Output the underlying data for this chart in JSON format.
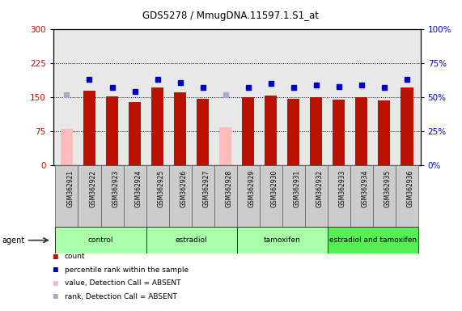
{
  "title": "GDS5278 / MmugDNA.11597.1.S1_at",
  "samples": [
    "GSM362921",
    "GSM362922",
    "GSM362923",
    "GSM362924",
    "GSM362925",
    "GSM362926",
    "GSM362927",
    "GSM362928",
    "GSM362929",
    "GSM362930",
    "GSM362931",
    "GSM362932",
    "GSM362933",
    "GSM362934",
    "GSM362935",
    "GSM362936"
  ],
  "bar_values": [
    80,
    165,
    152,
    140,
    172,
    160,
    146,
    83,
    150,
    153,
    146,
    150,
    145,
    150,
    143,
    172
  ],
  "bar_absent": [
    true,
    false,
    false,
    false,
    false,
    false,
    false,
    true,
    false,
    false,
    false,
    false,
    false,
    false,
    false,
    false
  ],
  "dot_values": [
    52,
    63,
    57,
    54,
    63,
    61,
    57,
    52,
    57,
    60,
    57,
    59,
    58,
    59,
    57,
    63
  ],
  "dot_absent": [
    true,
    false,
    false,
    false,
    false,
    false,
    false,
    true,
    false,
    false,
    false,
    false,
    false,
    false,
    false,
    false
  ],
  "ylim_left": [
    0,
    300
  ],
  "ylim_right": [
    0,
    100
  ],
  "yticks_left": [
    0,
    75,
    150,
    225,
    300
  ],
  "yticks_right": [
    0,
    25,
    50,
    75,
    100
  ],
  "group_labels": [
    "control",
    "estradiol",
    "tamoxifen",
    "estradiol and tamoxifen"
  ],
  "group_ranges": [
    [
      0,
      4
    ],
    [
      4,
      8
    ],
    [
      8,
      12
    ],
    [
      12,
      16
    ]
  ],
  "group_colors": [
    "#aaffaa",
    "#aaffaa",
    "#aaffaa",
    "#55ee55"
  ],
  "bar_color_present": "#bb1100",
  "bar_color_absent": "#ffbbbb",
  "dot_color_present": "#0000bb",
  "dot_color_absent": "#aaaacc",
  "agent_label": "agent",
  "legend_labels": [
    "count",
    "percentile rank within the sample",
    "value, Detection Call = ABSENT",
    "rank, Detection Call = ABSENT"
  ],
  "legend_colors": [
    "#bb1100",
    "#0000bb",
    "#ffbbbb",
    "#aaaacc"
  ],
  "grid_yticks": [
    75,
    150,
    225
  ],
  "plot_bg": "#e8e8e8",
  "bar_width": 0.55
}
